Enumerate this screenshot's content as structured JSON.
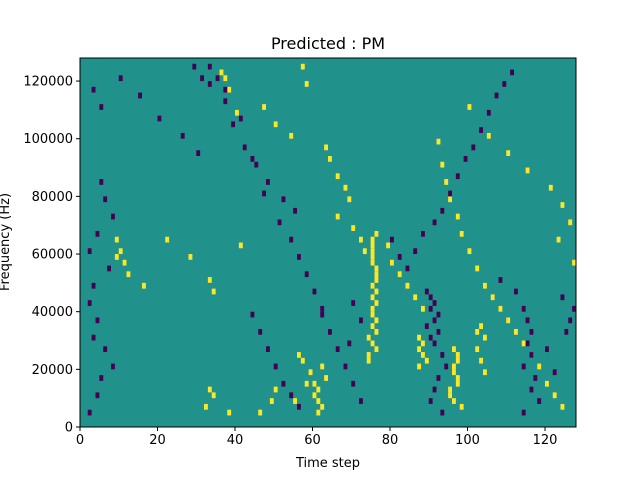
{
  "chart_data": {
    "type": "heatmap",
    "title": "Predicted : PM",
    "xlabel": "Time step",
    "ylabel": "Frequency (Hz)",
    "xlim": [
      0,
      128
    ],
    "ylim": [
      0,
      128000
    ],
    "x_ticks": [
      0,
      20,
      40,
      60,
      80,
      100,
      120
    ],
    "x_tick_labels": [
      "0",
      "20",
      "40",
      "60",
      "80",
      "100",
      "120"
    ],
    "y_ticks": [
      0,
      20000,
      40000,
      60000,
      80000,
      100000,
      120000
    ],
    "y_tick_labels": [
      "0",
      "20000",
      "40000",
      "60000",
      "80000",
      "100000",
      "120000"
    ],
    "colormap": "viridis",
    "value_range": [
      -1,
      1
    ],
    "colors": {
      "background_value_0": "#21918c",
      "value_1": "#fde725",
      "value_neg1": "#440154"
    },
    "cell_height_hz": 2000,
    "cells": [
      [
        75,
        56000,
        1
      ],
      [
        75,
        58000,
        1
      ],
      [
        75,
        60000,
        1
      ],
      [
        75,
        62000,
        1
      ],
      [
        75,
        64000,
        1
      ],
      [
        76,
        54000,
        1
      ],
      [
        76,
        52000,
        1
      ],
      [
        76,
        50000,
        1
      ],
      [
        75,
        48000,
        1
      ],
      [
        76,
        46000,
        1
      ],
      [
        75,
        44000,
        1
      ],
      [
        76,
        42000,
        1
      ],
      [
        75,
        40000,
        1
      ],
      [
        75,
        38000,
        1
      ],
      [
        76,
        36000,
        1
      ],
      [
        75,
        34000,
        1
      ],
      [
        76,
        32000,
        1
      ],
      [
        74,
        30000,
        1
      ],
      [
        75,
        28000,
        1
      ],
      [
        76,
        26000,
        1
      ],
      [
        74,
        24000,
        1
      ],
      [
        74,
        22000,
        1
      ],
      [
        60,
        10000,
        1
      ],
      [
        61,
        8000,
        1
      ],
      [
        62,
        6000,
        1
      ],
      [
        60,
        14000,
        1
      ],
      [
        61,
        12000,
        1
      ],
      [
        63,
        16000,
        1
      ],
      [
        59,
        18000,
        1
      ],
      [
        62,
        20000,
        1
      ],
      [
        61,
        4000,
        1
      ],
      [
        96,
        26000,
        1
      ],
      [
        97,
        22000,
        1
      ],
      [
        96,
        18000,
        1
      ],
      [
        97,
        14000,
        1
      ],
      [
        95,
        10000,
        1
      ],
      [
        96,
        8000,
        1
      ],
      [
        98,
        6000,
        1
      ],
      [
        95,
        12000,
        1
      ],
      [
        97,
        16000,
        1
      ],
      [
        96,
        20000,
        1
      ],
      [
        97,
        24000,
        1
      ],
      [
        103,
        34000,
        1
      ],
      [
        104,
        30000,
        1
      ],
      [
        102,
        26000,
        1
      ],
      [
        103,
        22000,
        1
      ],
      [
        104,
        18000,
        1
      ],
      [
        102,
        32000,
        1
      ],
      [
        87,
        30000,
        1
      ],
      [
        88,
        28000,
        1
      ],
      [
        87,
        26000,
        1
      ],
      [
        88,
        24000,
        1
      ],
      [
        89,
        22000,
        1
      ],
      [
        87,
        20000,
        1
      ],
      [
        33,
        12000,
        1
      ],
      [
        34,
        10000,
        1
      ],
      [
        32,
        6000,
        1
      ],
      [
        38,
        4000,
        1
      ],
      [
        46,
        4000,
        1
      ],
      [
        50,
        12000,
        1
      ],
      [
        49,
        8000,
        1
      ],
      [
        55,
        8000,
        1
      ],
      [
        58,
        14000,
        1
      ],
      [
        57,
        22000,
        1
      ],
      [
        56,
        24000,
        1
      ],
      [
        9,
        64000,
        1
      ],
      [
        10,
        60000,
        1
      ],
      [
        11,
        56000,
        1
      ],
      [
        9,
        58000,
        1
      ],
      [
        12,
        52000,
        1
      ],
      [
        16,
        48000,
        1
      ],
      [
        22,
        64000,
        1
      ],
      [
        28,
        58000,
        1
      ],
      [
        33,
        50000,
        1
      ],
      [
        34,
        46000,
        1
      ],
      [
        41,
        62000,
        1
      ],
      [
        36,
        122000,
        1
      ],
      [
        37,
        120000,
        1
      ],
      [
        38,
        116000,
        1
      ],
      [
        40,
        108000,
        1
      ],
      [
        47,
        110000,
        1
      ],
      [
        50,
        104000,
        1
      ],
      [
        54,
        100000,
        1
      ],
      [
        57,
        124000,
        1
      ],
      [
        58,
        118000,
        1
      ],
      [
        63,
        96000,
        1
      ],
      [
        64,
        92000,
        1
      ],
      [
        66,
        86000,
        1
      ],
      [
        68,
        82000,
        1
      ],
      [
        69,
        78000,
        1
      ],
      [
        66,
        72000,
        1
      ],
      [
        70,
        68000,
        1
      ],
      [
        72,
        64000,
        1
      ],
      [
        73,
        60000,
        1
      ],
      [
        76,
        66000,
        1
      ],
      [
        79,
        62000,
        1
      ],
      [
        80,
        56000,
        1
      ],
      [
        82,
        52000,
        1
      ],
      [
        84,
        48000,
        1
      ],
      [
        86,
        44000,
        1
      ],
      [
        88,
        40000,
        1
      ],
      [
        92,
        98000,
        1
      ],
      [
        93,
        90000,
        1
      ],
      [
        94,
        84000,
        1
      ],
      [
        95,
        78000,
        1
      ],
      [
        97,
        72000,
        1
      ],
      [
        98,
        66000,
        1
      ],
      [
        100,
        60000,
        1
      ],
      [
        102,
        54000,
        1
      ],
      [
        104,
        48000,
        1
      ],
      [
        106,
        44000,
        1
      ],
      [
        108,
        40000,
        1
      ],
      [
        110,
        36000,
        1
      ],
      [
        112,
        32000,
        1
      ],
      [
        114,
        28000,
        1
      ],
      [
        116,
        24000,
        1
      ],
      [
        118,
        20000,
        1
      ],
      [
        120,
        14000,
        1
      ],
      [
        122,
        10000,
        1
      ],
      [
        124,
        6000,
        1
      ],
      [
        100,
        110000,
        1
      ],
      [
        105,
        100000,
        1
      ],
      [
        110,
        94000,
        1
      ],
      [
        115,
        88000,
        1
      ],
      [
        121,
        82000,
        1
      ],
      [
        124,
        76000,
        1
      ],
      [
        126,
        70000,
        1
      ],
      [
        123,
        64000,
        1
      ],
      [
        127,
        56000,
        1
      ],
      [
        3,
        116000,
        -1
      ],
      [
        5,
        110000,
        -1
      ],
      [
        10,
        120000,
        -1
      ],
      [
        15,
        114000,
        -1
      ],
      [
        20,
        106000,
        -1
      ],
      [
        26,
        100000,
        -1
      ],
      [
        30,
        94000,
        -1
      ],
      [
        29,
        124000,
        -1
      ],
      [
        31,
        120000,
        -1
      ],
      [
        33,
        118000,
        -1
      ],
      [
        37,
        112000,
        -1
      ],
      [
        39,
        104000,
        -1
      ],
      [
        42,
        96000,
        -1
      ],
      [
        45,
        90000,
        -1
      ],
      [
        48,
        84000,
        -1
      ],
      [
        52,
        78000,
        -1
      ],
      [
        55,
        74000,
        -1
      ],
      [
        5,
        84000,
        -1
      ],
      [
        6,
        78000,
        -1
      ],
      [
        8,
        72000,
        -1
      ],
      [
        4,
        66000,
        -1
      ],
      [
        2,
        60000,
        -1
      ],
      [
        7,
        54000,
        -1
      ],
      [
        3,
        48000,
        -1
      ],
      [
        2,
        42000,
        -1
      ],
      [
        4,
        36000,
        -1
      ],
      [
        3,
        30000,
        -1
      ],
      [
        6,
        26000,
        -1
      ],
      [
        8,
        20000,
        -1
      ],
      [
        5,
        16000,
        -1
      ],
      [
        4,
        10000,
        -1
      ],
      [
        2,
        4000,
        -1
      ],
      [
        62,
        38000,
        -1
      ],
      [
        64,
        32000,
        -1
      ],
      [
        66,
        26000,
        -1
      ],
      [
        68,
        20000,
        -1
      ],
      [
        70,
        14000,
        -1
      ],
      [
        72,
        8000,
        -1
      ],
      [
        70,
        42000,
        -1
      ],
      [
        72,
        36000,
        -1
      ],
      [
        69,
        28000,
        -1
      ],
      [
        89,
        46000,
        -1
      ],
      [
        90,
        44000,
        -1
      ],
      [
        91,
        42000,
        -1
      ],
      [
        90,
        40000,
        -1
      ],
      [
        92,
        38000,
        -1
      ],
      [
        91,
        36000,
        -1
      ],
      [
        89,
        34000,
        -1
      ],
      [
        92,
        32000,
        -1
      ],
      [
        90,
        30000,
        -1
      ],
      [
        91,
        28000,
        -1
      ],
      [
        93,
        24000,
        -1
      ],
      [
        94,
        20000,
        -1
      ],
      [
        92,
        16000,
        -1
      ],
      [
        91,
        12000,
        -1
      ],
      [
        90,
        8000,
        -1
      ],
      [
        93,
        4000,
        -1
      ],
      [
        108,
        50000,
        -1
      ],
      [
        112,
        46000,
        -1
      ],
      [
        114,
        40000,
        -1
      ],
      [
        115,
        36000,
        -1
      ],
      [
        116,
        32000,
        -1
      ],
      [
        115,
        28000,
        -1
      ],
      [
        116,
        24000,
        -1
      ],
      [
        114,
        20000,
        -1
      ],
      [
        117,
        16000,
        -1
      ],
      [
        116,
        12000,
        -1
      ],
      [
        118,
        8000,
        -1
      ],
      [
        114,
        4000,
        -1
      ],
      [
        126,
        36000,
        -1
      ],
      [
        127,
        40000,
        -1
      ],
      [
        128,
        38000,
        -1
      ],
      [
        125,
        32000,
        -1
      ],
      [
        120,
        26000,
        -1
      ],
      [
        122,
        18000,
        -1
      ],
      [
        124,
        44000,
        -1
      ],
      [
        80,
        64000,
        -1
      ],
      [
        82,
        58000,
        -1
      ],
      [
        84,
        54000,
        -1
      ],
      [
        86,
        60000,
        -1
      ],
      [
        88,
        66000,
        -1
      ],
      [
        91,
        70000,
        -1
      ],
      [
        93,
        74000,
        -1
      ],
      [
        95,
        80000,
        -1
      ],
      [
        97,
        86000,
        -1
      ],
      [
        99,
        92000,
        -1
      ],
      [
        101,
        96000,
        -1
      ],
      [
        103,
        102000,
        -1
      ],
      [
        105,
        108000,
        -1
      ],
      [
        107,
        114000,
        -1
      ],
      [
        109,
        118000,
        -1
      ],
      [
        111,
        122000,
        -1
      ],
      [
        33,
        124000,
        -1
      ],
      [
        35,
        120000,
        -1
      ],
      [
        37,
        116000,
        -1
      ],
      [
        41,
        106000,
        -1
      ],
      [
        44,
        92000,
        -1
      ],
      [
        47,
        80000,
        -1
      ],
      [
        51,
        70000,
        -1
      ],
      [
        54,
        64000,
        -1
      ],
      [
        56,
        58000,
        -1
      ],
      [
        58,
        52000,
        -1
      ],
      [
        60,
        46000,
        -1
      ],
      [
        62,
        40000,
        -1
      ],
      [
        44,
        38000,
        -1
      ],
      [
        46,
        32000,
        -1
      ],
      [
        48,
        26000,
        -1
      ],
      [
        50,
        20000,
        -1
      ],
      [
        52,
        14000,
        -1
      ],
      [
        54,
        10000,
        -1
      ],
      [
        56,
        6000,
        -1
      ]
    ]
  }
}
